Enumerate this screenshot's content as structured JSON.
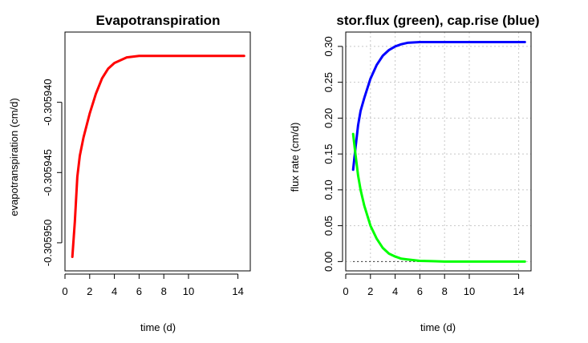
{
  "chart_data": [
    {
      "type": "line",
      "title": "Evapotranspiration",
      "xlabel": "time (d)",
      "ylabel": "evapotranspiration (cm/d)",
      "xlim": [
        0,
        15
      ],
      "ylim": [
        -0.305952,
        -0.305935
      ],
      "xticks": [
        0,
        2,
        4,
        6,
        8,
        10,
        14
      ],
      "yticks": [
        -0.30595,
        -0.305945,
        -0.30594
      ],
      "ytick_labels": [
        "-0.305950",
        "-0.305945",
        "-0.305940"
      ],
      "grid": false,
      "series": [
        {
          "color": "#ff0000",
          "x": [
            0.6,
            0.8,
            1.0,
            1.2,
            1.5,
            2.0,
            2.5,
            3.0,
            3.5,
            4.0,
            4.5,
            5.0,
            6.0,
            7.0,
            8.0,
            10.0,
            12.0,
            14.5
          ],
          "y": [
            -0.305951,
            -0.3059485,
            -0.3059453,
            -0.3059438,
            -0.3059425,
            -0.3059408,
            -0.3059394,
            -0.3059383,
            -0.3059376,
            -0.3059372,
            -0.305937,
            -0.3059368,
            -0.3059367,
            -0.3059367,
            -0.3059367,
            -0.3059367,
            -0.3059367,
            -0.3059367
          ]
        }
      ]
    },
    {
      "type": "line",
      "title": "stor.flux (green), cap.rise (blue)",
      "xlabel": "time (d)",
      "ylabel": "flux rate (cm/d)",
      "xlim": [
        0,
        15
      ],
      "ylim": [
        -0.013,
        0.32
      ],
      "xticks": [
        0,
        2,
        4,
        6,
        8,
        10,
        14
      ],
      "yticks": [
        0.0,
        0.05,
        0.1,
        0.15,
        0.2,
        0.25,
        0.3
      ],
      "ytick_labels": [
        "0.00",
        "0.05",
        "0.10",
        "0.15",
        "0.20",
        "0.25",
        "0.30"
      ],
      "grid": true,
      "reference_line": {
        "y": 0,
        "style": "dotted",
        "color": "#000000"
      },
      "series": [
        {
          "name": "cap.rise",
          "color": "#0000ff",
          "x": [
            0.6,
            0.8,
            1.0,
            1.2,
            1.5,
            2.0,
            2.5,
            3.0,
            3.5,
            4.0,
            4.5,
            5.0,
            6.0,
            7.0,
            8.0,
            10.0,
            12.0,
            14.5
          ],
          "y": [
            0.128,
            0.16,
            0.19,
            0.21,
            0.228,
            0.255,
            0.274,
            0.287,
            0.295,
            0.3,
            0.303,
            0.305,
            0.306,
            0.306,
            0.306,
            0.306,
            0.306,
            0.306
          ]
        },
        {
          "name": "stor.flux",
          "color": "#00ff00",
          "x": [
            0.6,
            0.8,
            1.0,
            1.2,
            1.5,
            2.0,
            2.5,
            3.0,
            3.5,
            4.0,
            4.5,
            5.0,
            6.0,
            7.0,
            8.0,
            10.0,
            12.0,
            14.5
          ],
          "y": [
            0.178,
            0.148,
            0.12,
            0.1,
            0.078,
            0.05,
            0.032,
            0.019,
            0.011,
            0.007,
            0.004,
            0.003,
            0.001,
            0.0005,
            0.0,
            0.0,
            0.0,
            0.0
          ]
        }
      ]
    }
  ]
}
